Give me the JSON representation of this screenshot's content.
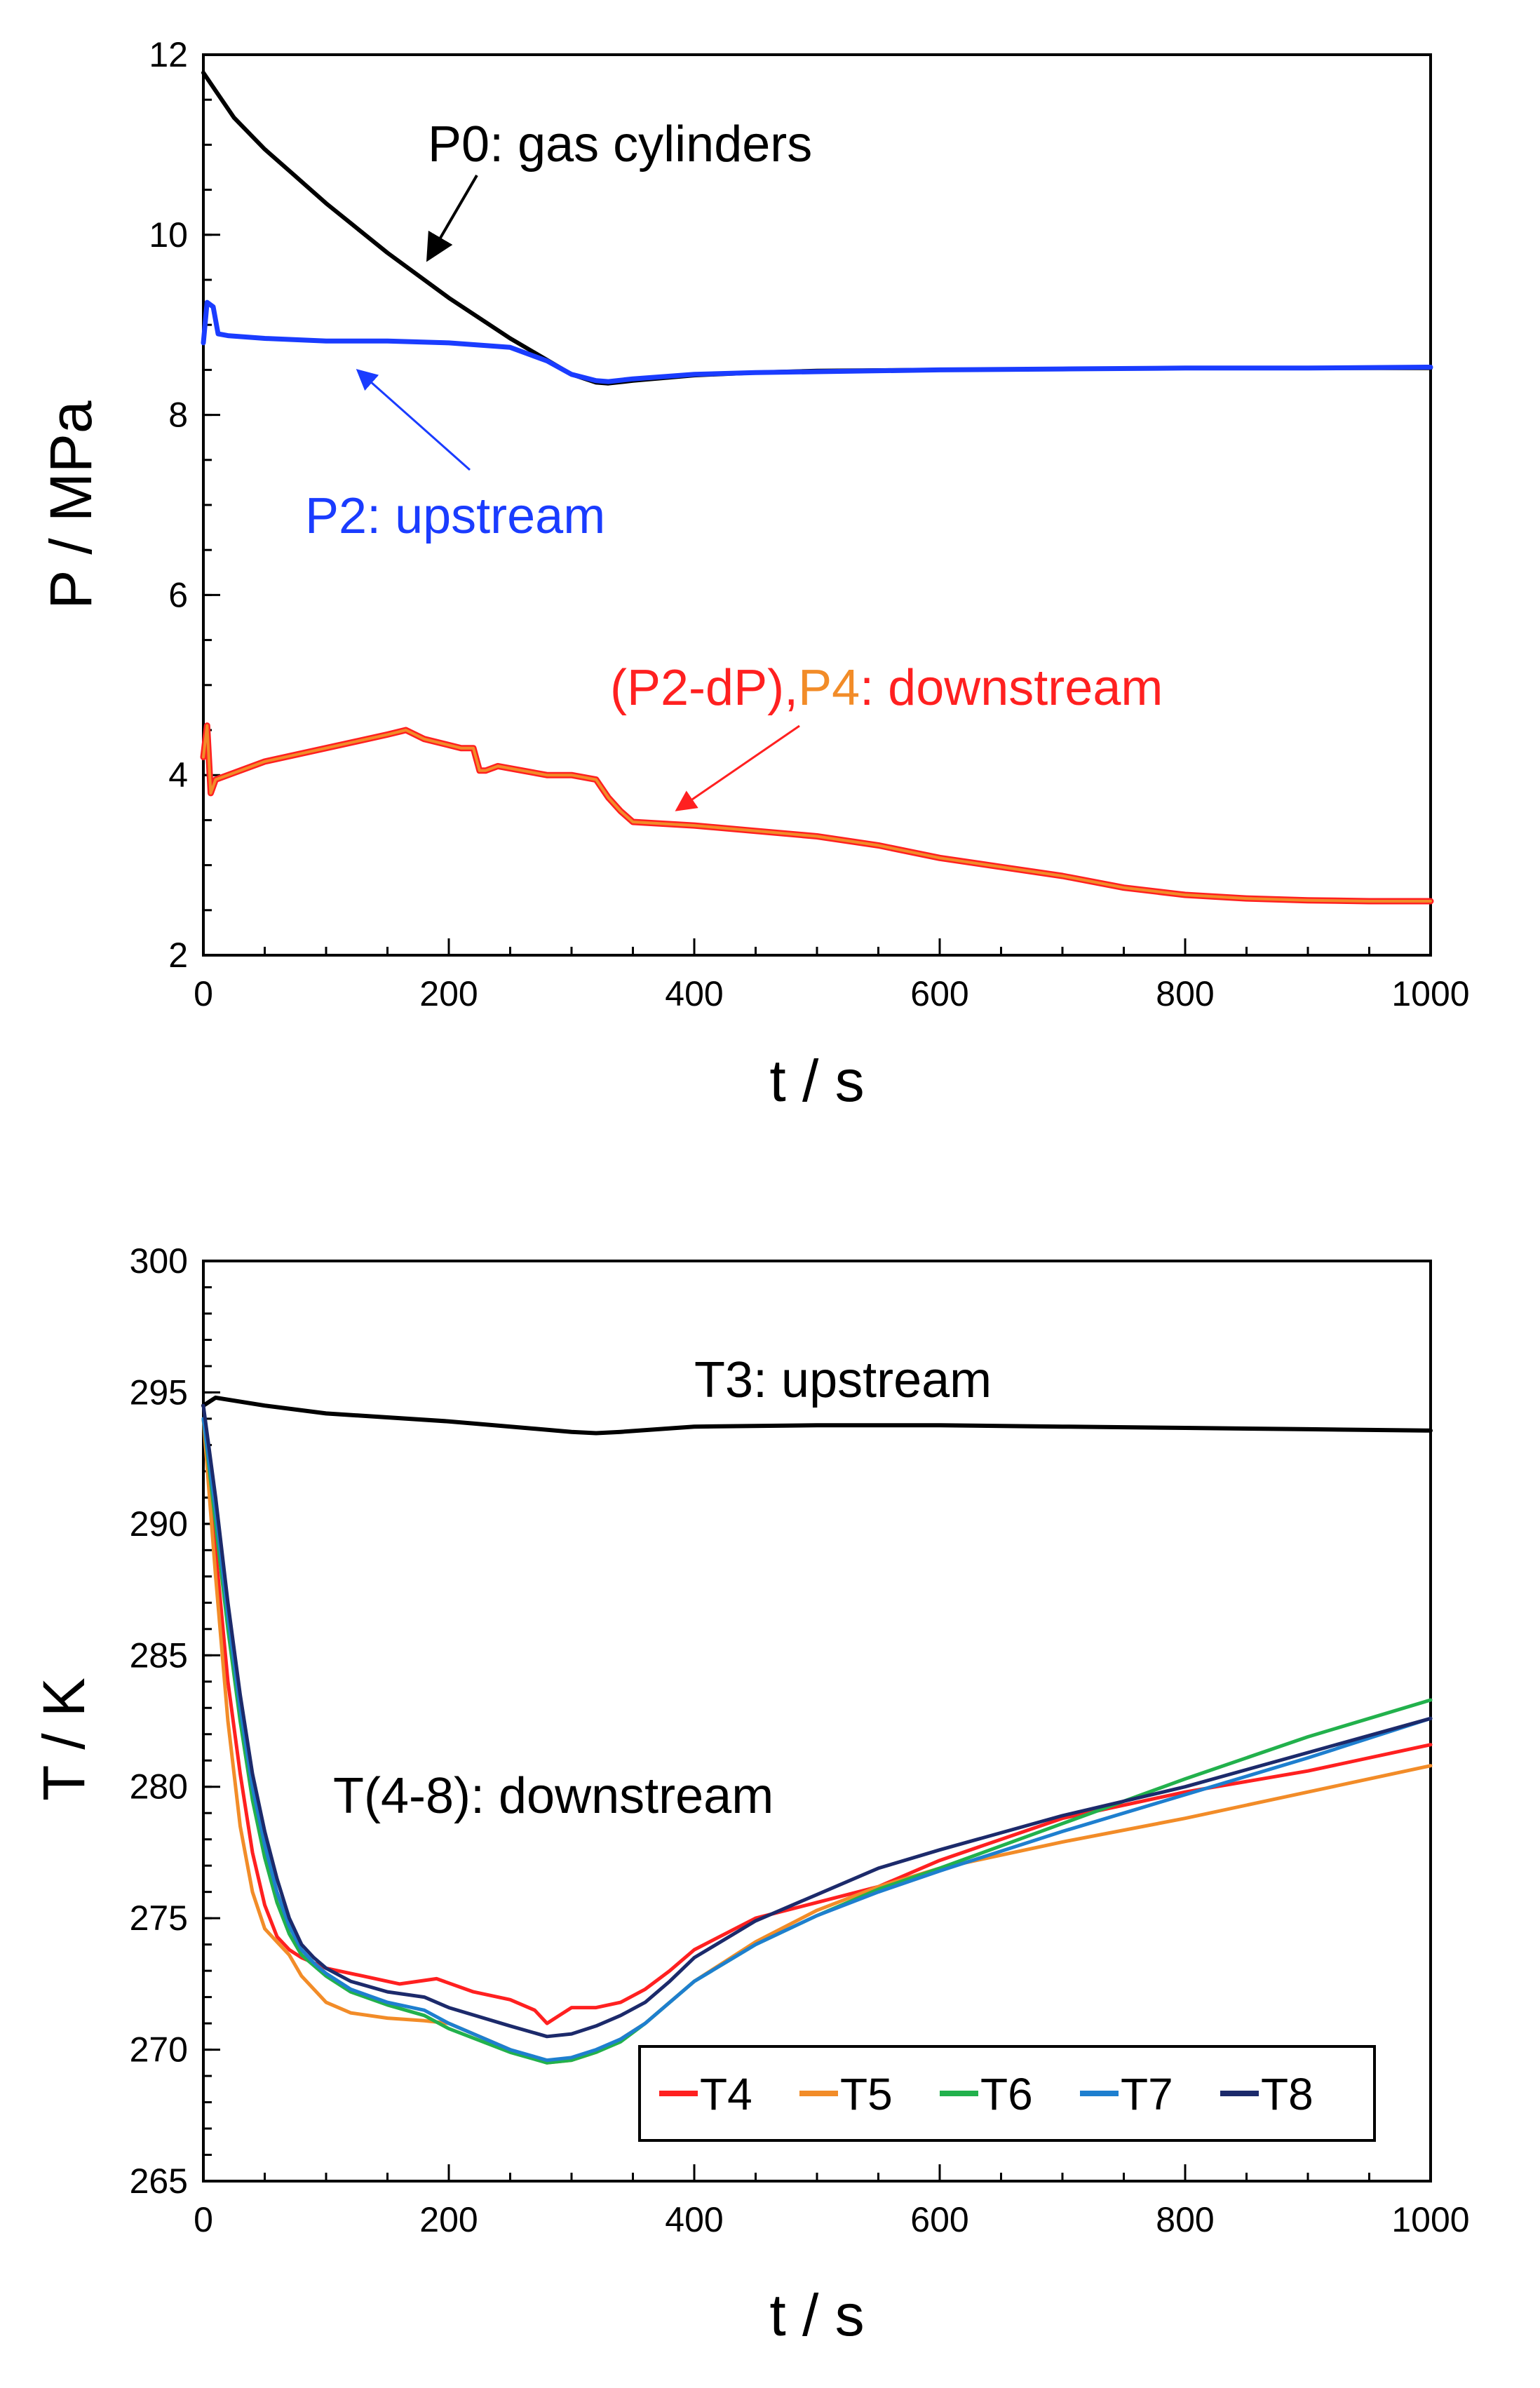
{
  "chart_data": [
    {
      "type": "line",
      "id": "pressure",
      "xlabel": "t / s",
      "ylabel": "P / MPa",
      "xlim": [
        0,
        1000
      ],
      "ylim": [
        2,
        12
      ],
      "xticks": [
        0,
        200,
        400,
        600,
        800,
        1000
      ],
      "yticks": [
        2,
        4,
        6,
        8,
        10,
        12
      ],
      "grid": false,
      "series": [
        {
          "name": "P0",
          "color": "#000000",
          "x": [
            0,
            10,
            25,
            50,
            75,
            100,
            150,
            200,
            250,
            300,
            320,
            330,
            350,
            400,
            450,
            500,
            600,
            700,
            800,
            900,
            1000
          ],
          "y": [
            11.8,
            11.6,
            11.3,
            10.95,
            10.65,
            10.35,
            9.8,
            9.3,
            8.85,
            8.45,
            8.36,
            8.35,
            8.38,
            8.44,
            8.47,
            8.49,
            8.5,
            8.51,
            8.52,
            8.52,
            8.52
          ]
        },
        {
          "name": "P2",
          "color": "#1a3cff",
          "x": [
            0,
            3,
            8,
            12,
            20,
            50,
            100,
            150,
            200,
            250,
            280,
            300,
            320,
            330,
            350,
            400,
            450,
            500,
            600,
            700,
            800,
            900,
            1000
          ],
          "y": [
            8.8,
            9.25,
            9.2,
            8.9,
            8.88,
            8.85,
            8.82,
            8.82,
            8.8,
            8.75,
            8.6,
            8.45,
            8.38,
            8.37,
            8.4,
            8.45,
            8.47,
            8.48,
            8.5,
            8.51,
            8.52,
            8.52,
            8.53
          ]
        },
        {
          "name": "P2-dP",
          "color": "#ff2020",
          "x": [
            0,
            3,
            6,
            10,
            20,
            50,
            100,
            150,
            165,
            180,
            210,
            220,
            225,
            230,
            240,
            260,
            280,
            300,
            320,
            330,
            340,
            350,
            400,
            450,
            500,
            550,
            600,
            650,
            700,
            750,
            800,
            850,
            900,
            950,
            1000
          ],
          "y": [
            4.2,
            4.55,
            3.8,
            3.95,
            4.0,
            4.15,
            4.3,
            4.45,
            4.5,
            4.4,
            4.3,
            4.3,
            4.05,
            4.05,
            4.1,
            4.05,
            4.0,
            4.0,
            3.95,
            3.75,
            3.6,
            3.48,
            3.44,
            3.38,
            3.32,
            3.22,
            3.08,
            2.98,
            2.88,
            2.75,
            2.67,
            2.63,
            2.61,
            2.6,
            2.6
          ]
        },
        {
          "name": "P4",
          "color": "#f28c28",
          "x": [
            0,
            3,
            6,
            10,
            20,
            50,
            100,
            150,
            165,
            180,
            210,
            220,
            225,
            230,
            240,
            260,
            280,
            300,
            320,
            330,
            340,
            350,
            400,
            450,
            500,
            550,
            600,
            650,
            700,
            750,
            800,
            850,
            900,
            950,
            1000
          ],
          "y": [
            4.2,
            4.55,
            3.8,
            3.95,
            4.0,
            4.15,
            4.3,
            4.45,
            4.5,
            4.4,
            4.3,
            4.3,
            4.05,
            4.05,
            4.1,
            4.05,
            4.0,
            4.0,
            3.95,
            3.75,
            3.6,
            3.48,
            3.44,
            3.38,
            3.32,
            3.22,
            3.08,
            2.98,
            2.88,
            2.75,
            2.67,
            2.63,
            2.61,
            2.6,
            2.6
          ]
        }
      ],
      "annotations": [
        {
          "text": "P0: gas cylinders",
          "color": "#000000",
          "arrow_to": [
            185,
            9.65
          ]
        },
        {
          "text": "P2: upstream",
          "color": "#1a3cff",
          "arrow_to": [
            130,
            8.65
          ]
        },
        {
          "text": "(P2-dP),",
          "color": "#ff2020"
        },
        {
          "text": "P4",
          "color": "#f28c28"
        },
        {
          "text": ": downstream",
          "color": "#ff2020",
          "arrow_to": [
            385,
            3.6
          ]
        }
      ]
    },
    {
      "type": "line",
      "id": "temperature",
      "xlabel": "t / s",
      "ylabel": "T / K",
      "xlim": [
        0,
        1000
      ],
      "ylim": [
        265,
        300
      ],
      "xticks": [
        0,
        200,
        400,
        600,
        800,
        1000
      ],
      "yticks": [
        265,
        270,
        275,
        280,
        285,
        290,
        295,
        300
      ],
      "grid": false,
      "legend_location": "bottom-right",
      "series": [
        {
          "name": "T3",
          "color": "#000000",
          "x": [
            0,
            10,
            50,
            100,
            200,
            300,
            320,
            340,
            400,
            500,
            600,
            700,
            800,
            900,
            1000
          ],
          "y": [
            294.5,
            294.8,
            294.5,
            294.2,
            293.9,
            293.5,
            293.45,
            293.5,
            293.7,
            293.75,
            293.75,
            293.7,
            293.65,
            293.6,
            293.55
          ]
        },
        {
          "name": "T4",
          "color": "#ff2020",
          "x": [
            0,
            10,
            20,
            30,
            40,
            50,
            60,
            70,
            80,
            100,
            130,
            160,
            190,
            220,
            250,
            270,
            280,
            290,
            300,
            320,
            340,
            360,
            380,
            400,
            450,
            500,
            550,
            600,
            700,
            800,
            900,
            1000
          ],
          "y": [
            294,
            289,
            284,
            280.5,
            277.5,
            275.5,
            274.3,
            273.8,
            273.5,
            273.1,
            272.8,
            272.5,
            272.7,
            272.2,
            271.9,
            271.5,
            271.0,
            271.3,
            271.6,
            271.6,
            271.8,
            272.3,
            273.0,
            273.8,
            275.0,
            275.6,
            276.2,
            277.2,
            278.8,
            279.8,
            280.6,
            281.6
          ]
        },
        {
          "name": "T5",
          "color": "#f28c28",
          "x": [
            0,
            10,
            20,
            30,
            40,
            50,
            60,
            70,
            80,
            100,
            120,
            150,
            180,
            200,
            250,
            280,
            300,
            320,
            340,
            360,
            380,
            400,
            450,
            500,
            550,
            600,
            700,
            800,
            900,
            1000
          ],
          "y": [
            294,
            288,
            282.5,
            278.5,
            276,
            274.6,
            274.1,
            273.6,
            272.8,
            271.8,
            271.4,
            271.2,
            271.1,
            271.0,
            270.0,
            269.5,
            269.6,
            269.9,
            270.4,
            271.0,
            271.8,
            272.6,
            274.1,
            275.3,
            276.2,
            276.9,
            277.9,
            278.8,
            279.8,
            280.8
          ]
        },
        {
          "name": "T6",
          "color": "#22b14c",
          "x": [
            0,
            10,
            20,
            30,
            40,
            50,
            60,
            70,
            80,
            90,
            100,
            120,
            150,
            180,
            200,
            250,
            280,
            300,
            320,
            340,
            360,
            380,
            400,
            450,
            500,
            550,
            600,
            700,
            800,
            900,
            1000
          ],
          "y": [
            294,
            290,
            286,
            282.5,
            279.5,
            277.3,
            275.6,
            274.4,
            273.6,
            273.2,
            272.8,
            272.2,
            271.7,
            271.3,
            270.8,
            269.9,
            269.5,
            269.6,
            269.9,
            270.3,
            271.0,
            271.8,
            272.6,
            274.0,
            275.1,
            276.1,
            276.9,
            278.6,
            280.3,
            281.9,
            283.3
          ]
        },
        {
          "name": "T7",
          "color": "#1e7fcf",
          "x": [
            0,
            10,
            20,
            30,
            40,
            50,
            60,
            70,
            80,
            90,
            100,
            120,
            150,
            180,
            200,
            250,
            280,
            300,
            320,
            340,
            360,
            380,
            400,
            450,
            500,
            550,
            600,
            700,
            800,
            900,
            1000
          ],
          "y": [
            294,
            290.5,
            286.5,
            283,
            280,
            277.8,
            276,
            274.7,
            273.8,
            273.3,
            272.9,
            272.3,
            271.8,
            271.5,
            271.0,
            270.0,
            269.6,
            269.7,
            270.0,
            270.4,
            271.0,
            271.8,
            272.6,
            274.0,
            275.1,
            276.0,
            276.8,
            278.3,
            279.7,
            281.1,
            282.6
          ]
        },
        {
          "name": "T8",
          "color": "#1c2a6b",
          "x": [
            0,
            10,
            20,
            30,
            40,
            50,
            60,
            70,
            80,
            90,
            100,
            120,
            150,
            180,
            200,
            250,
            280,
            300,
            320,
            340,
            360,
            380,
            400,
            450,
            500,
            550,
            600,
            700,
            800,
            900,
            1000
          ],
          "y": [
            294.5,
            291,
            287,
            283.5,
            280.5,
            278.3,
            276.5,
            275.0,
            274.0,
            273.5,
            273.1,
            272.6,
            272.2,
            272.0,
            271.6,
            270.9,
            270.5,
            270.6,
            270.9,
            271.3,
            271.8,
            272.6,
            273.5,
            274.9,
            275.9,
            276.9,
            277.6,
            278.9,
            280.0,
            281.3,
            282.6
          ]
        }
      ],
      "annotations": [
        {
          "text": "T3: upstream",
          "color": "#000000"
        },
        {
          "text": "T(4-8): downstream",
          "color": "#000000"
        }
      ]
    }
  ]
}
